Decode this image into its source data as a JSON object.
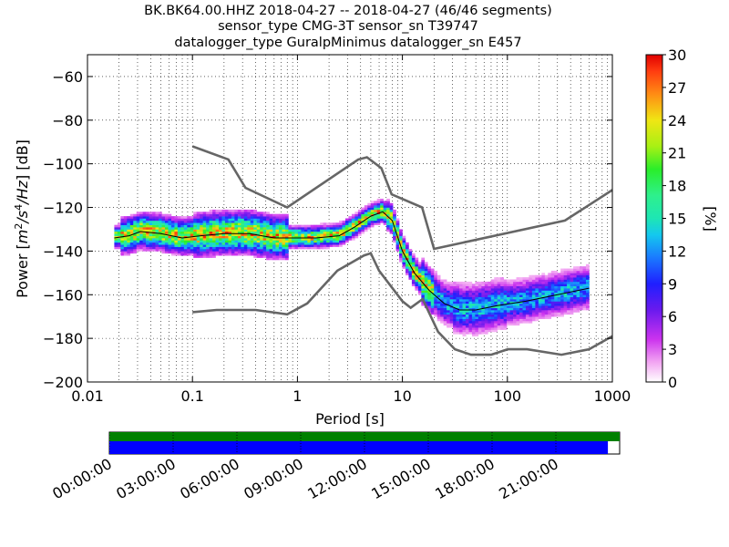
{
  "title_lines": [
    "BK.BK64.00.HHZ   2018-04-27 -- 2018-04-27  (46/46 segments)",
    "sensor_type CMG-3T sensor_sn T39747",
    "datalogger_type GuralpMinimus datalogger_sn E457"
  ],
  "colors": {
    "nlnm_nhnm": "#666666",
    "grid": "#000000",
    "availability_top": "#008000",
    "availability_bottom": "#0000ff",
    "mode_line": "#000000"
  },
  "chart_data": {
    "type": "heatmap",
    "subtype": "probabilistic_power_spectral_density",
    "xlabel": "Period [s]",
    "ylabel": "Power [m²/s⁴/Hz] [dB]",
    "xscale": "log",
    "xlim": [
      0.01,
      1000
    ],
    "ylim": [
      -200,
      -50
    ],
    "xticks": [
      {
        "value": 0.01,
        "label": "0.01"
      },
      {
        "value": 0.1,
        "label": "0.1"
      },
      {
        "value": 1,
        "label": "1"
      },
      {
        "value": 10,
        "label": "10"
      },
      {
        "value": 100,
        "label": "100"
      },
      {
        "value": 1000,
        "label": "1000"
      }
    ],
    "yticks": [
      -60,
      -80,
      -100,
      -120,
      -140,
      -160,
      -180,
      -200
    ],
    "ytick_labels": [
      "−60",
      "−80",
      "−100",
      "−120",
      "−140",
      "−160",
      "−180",
      "−200"
    ],
    "grid": true,
    "colorbar": {
      "label": "[%]",
      "range": [
        0,
        30
      ],
      "ticks": [
        "0",
        "3",
        "6",
        "9",
        "12",
        "15",
        "18",
        "21",
        "24",
        "27",
        "30"
      ]
    },
    "noise_models": [
      {
        "name": "NHNM",
        "points": [
          [
            0.1,
            -92
          ],
          [
            0.22,
            -98
          ],
          [
            0.32,
            -111
          ],
          [
            0.8,
            -120
          ],
          [
            3.8,
            -98
          ],
          [
            4.6,
            -97
          ],
          [
            6.3,
            -102
          ],
          [
            7.9,
            -114
          ],
          [
            15.4,
            -120
          ],
          [
            20,
            -139
          ],
          [
            354,
            -126
          ],
          [
            1000,
            -112
          ]
        ]
      },
      {
        "name": "NLNM",
        "points": [
          [
            0.1,
            -168
          ],
          [
            0.17,
            -167
          ],
          [
            0.4,
            -167
          ],
          [
            0.8,
            -169
          ],
          [
            1.24,
            -164
          ],
          [
            2.4,
            -149
          ],
          [
            4.3,
            -142
          ],
          [
            5,
            -141
          ],
          [
            6,
            -149
          ],
          [
            10,
            -163
          ],
          [
            12,
            -166
          ],
          [
            15.6,
            -162
          ],
          [
            21.9,
            -177
          ],
          [
            31.6,
            -185
          ],
          [
            45,
            -187.5
          ],
          [
            70,
            -187.5
          ],
          [
            101,
            -185
          ],
          [
            154,
            -185
          ],
          [
            328,
            -187.5
          ],
          [
            600,
            -185
          ],
          [
            1000,
            -179
          ]
        ]
      }
    ],
    "mode_curve": [
      [
        0.018,
        -134
      ],
      [
        0.025,
        -133
      ],
      [
        0.032,
        -131
      ],
      [
        0.05,
        -132
      ],
      [
        0.08,
        -134
      ],
      [
        0.12,
        -133
      ],
      [
        0.2,
        -132
      ],
      [
        0.35,
        -132
      ],
      [
        0.6,
        -134
      ],
      [
        1,
        -134
      ],
      [
        1.5,
        -134
      ],
      [
        2.5,
        -133
      ],
      [
        3.5,
        -129
      ],
      [
        5,
        -124
      ],
      [
        6.5,
        -122
      ],
      [
        8,
        -126
      ],
      [
        10,
        -140
      ],
      [
        13,
        -150
      ],
      [
        18,
        -158
      ],
      [
        25,
        -164
      ],
      [
        35,
        -167
      ],
      [
        50,
        -167
      ],
      [
        80,
        -165
      ],
      [
        150,
        -163
      ],
      [
        300,
        -160
      ],
      [
        600,
        -157
      ]
    ],
    "density_bands": [
      {
        "range": [
          0.018,
          0.02
        ],
        "center": -133,
        "spread": 3
      },
      {
        "range": [
          0.02,
          0.1
        ],
        "center": -133,
        "spread": 5
      },
      {
        "range": [
          0.1,
          0.8
        ],
        "center": -133,
        "spread": 6
      },
      {
        "range": [
          0.8,
          2.5
        ],
        "center": -134,
        "spread": 3
      },
      {
        "range": [
          2.5,
          7
        ],
        "center": -127,
        "spread": 3
      },
      {
        "range": [
          7,
          15
        ],
        "center": -145,
        "spread": 4
      },
      {
        "range": [
          15,
          30
        ],
        "center": -162,
        "spread": 6
      },
      {
        "range": [
          30,
          100
        ],
        "center": -168,
        "spread": 7
      },
      {
        "range": [
          100,
          600
        ],
        "center": -161,
        "spread": 6
      }
    ],
    "availability": {
      "time_labels": [
        "00:00:00",
        "03:00:00",
        "06:00:00",
        "09:00:00",
        "12:00:00",
        "15:00:00",
        "18:00:00",
        "21:00:00"
      ],
      "data_fraction": 0.977,
      "ppsd_fraction": 1.0
    }
  }
}
